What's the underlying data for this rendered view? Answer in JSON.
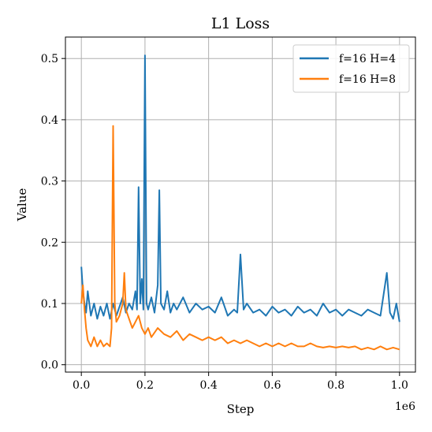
{
  "chart_data": {
    "type": "line",
    "title": "L1 Loss",
    "xlabel": "Step",
    "ylabel": "Value",
    "x_offset_label": "1e6",
    "xlim": [
      -0.05,
      1.05
    ],
    "ylim": [
      -0.012,
      0.535
    ],
    "xticks": [
      {
        "value": 0.0,
        "label": "0.0"
      },
      {
        "value": 0.2,
        "label": "0.2"
      },
      {
        "value": 0.4,
        "label": "0.4"
      },
      {
        "value": 0.6,
        "label": "0.6"
      },
      {
        "value": 0.8,
        "label": "0.8"
      },
      {
        "value": 1.0,
        "label": "1.0"
      }
    ],
    "yticks": [
      {
        "value": 0.0,
        "label": "0.0"
      },
      {
        "value": 0.1,
        "label": "0.1"
      },
      {
        "value": 0.2,
        "label": "0.2"
      },
      {
        "value": 0.3,
        "label": "0.3"
      },
      {
        "value": 0.4,
        "label": "0.4"
      },
      {
        "value": 0.5,
        "label": "0.5"
      }
    ],
    "grid": true,
    "legend_position": "top-right",
    "series": [
      {
        "name": "f=16 H=4",
        "color": "#1f77b4",
        "x": [
          0.0,
          0.005,
          0.01,
          0.015,
          0.02,
          0.03,
          0.04,
          0.05,
          0.06,
          0.07,
          0.08,
          0.09,
          0.1,
          0.11,
          0.12,
          0.13,
          0.14,
          0.15,
          0.16,
          0.17,
          0.175,
          0.18,
          0.185,
          0.19,
          0.195,
          0.2,
          0.205,
          0.21,
          0.22,
          0.23,
          0.24,
          0.245,
          0.25,
          0.26,
          0.27,
          0.28,
          0.29,
          0.3,
          0.32,
          0.34,
          0.36,
          0.38,
          0.4,
          0.42,
          0.44,
          0.46,
          0.48,
          0.49,
          0.5,
          0.51,
          0.52,
          0.54,
          0.56,
          0.58,
          0.6,
          0.62,
          0.64,
          0.66,
          0.68,
          0.7,
          0.72,
          0.74,
          0.76,
          0.78,
          0.8,
          0.82,
          0.84,
          0.86,
          0.88,
          0.9,
          0.92,
          0.94,
          0.96,
          0.97,
          0.98,
          0.99,
          1.0
        ],
        "y": [
          0.16,
          0.12,
          0.1,
          0.085,
          0.12,
          0.08,
          0.1,
          0.075,
          0.095,
          0.08,
          0.1,
          0.075,
          0.1,
          0.08,
          0.095,
          0.11,
          0.085,
          0.1,
          0.09,
          0.12,
          0.09,
          0.29,
          0.1,
          0.14,
          0.09,
          0.505,
          0.1,
          0.09,
          0.11,
          0.085,
          0.13,
          0.285,
          0.1,
          0.09,
          0.12,
          0.085,
          0.1,
          0.09,
          0.11,
          0.085,
          0.1,
          0.09,
          0.095,
          0.085,
          0.11,
          0.08,
          0.09,
          0.085,
          0.18,
          0.09,
          0.1,
          0.085,
          0.09,
          0.08,
          0.095,
          0.085,
          0.09,
          0.08,
          0.095,
          0.085,
          0.09,
          0.08,
          0.1,
          0.085,
          0.09,
          0.08,
          0.09,
          0.085,
          0.08,
          0.09,
          0.085,
          0.08,
          0.15,
          0.085,
          0.075,
          0.1,
          0.07
        ]
      },
      {
        "name": "f=16 H=8",
        "color": "#ff7f0e",
        "x": [
          0.0,
          0.005,
          0.01,
          0.015,
          0.02,
          0.03,
          0.04,
          0.05,
          0.06,
          0.07,
          0.08,
          0.09,
          0.095,
          0.1,
          0.105,
          0.11,
          0.12,
          0.13,
          0.135,
          0.14,
          0.15,
          0.16,
          0.17,
          0.18,
          0.19,
          0.2,
          0.21,
          0.22,
          0.24,
          0.26,
          0.28,
          0.3,
          0.32,
          0.34,
          0.36,
          0.38,
          0.4,
          0.42,
          0.44,
          0.46,
          0.48,
          0.5,
          0.52,
          0.54,
          0.56,
          0.58,
          0.6,
          0.62,
          0.64,
          0.66,
          0.68,
          0.7,
          0.72,
          0.74,
          0.76,
          0.78,
          0.8,
          0.82,
          0.84,
          0.86,
          0.88,
          0.9,
          0.92,
          0.94,
          0.96,
          0.98,
          1.0
        ],
        "y": [
          0.1,
          0.13,
          0.09,
          0.06,
          0.04,
          0.03,
          0.045,
          0.03,
          0.04,
          0.03,
          0.035,
          0.03,
          0.06,
          0.39,
          0.1,
          0.07,
          0.08,
          0.1,
          0.15,
          0.09,
          0.075,
          0.06,
          0.07,
          0.08,
          0.06,
          0.05,
          0.06,
          0.045,
          0.06,
          0.05,
          0.045,
          0.055,
          0.04,
          0.05,
          0.045,
          0.04,
          0.045,
          0.04,
          0.045,
          0.035,
          0.04,
          0.035,
          0.04,
          0.035,
          0.03,
          0.035,
          0.03,
          0.035,
          0.03,
          0.035,
          0.03,
          0.03,
          0.035,
          0.03,
          0.028,
          0.03,
          0.028,
          0.03,
          0.028,
          0.03,
          0.025,
          0.028,
          0.025,
          0.03,
          0.025,
          0.028,
          0.025
        ]
      }
    ]
  }
}
